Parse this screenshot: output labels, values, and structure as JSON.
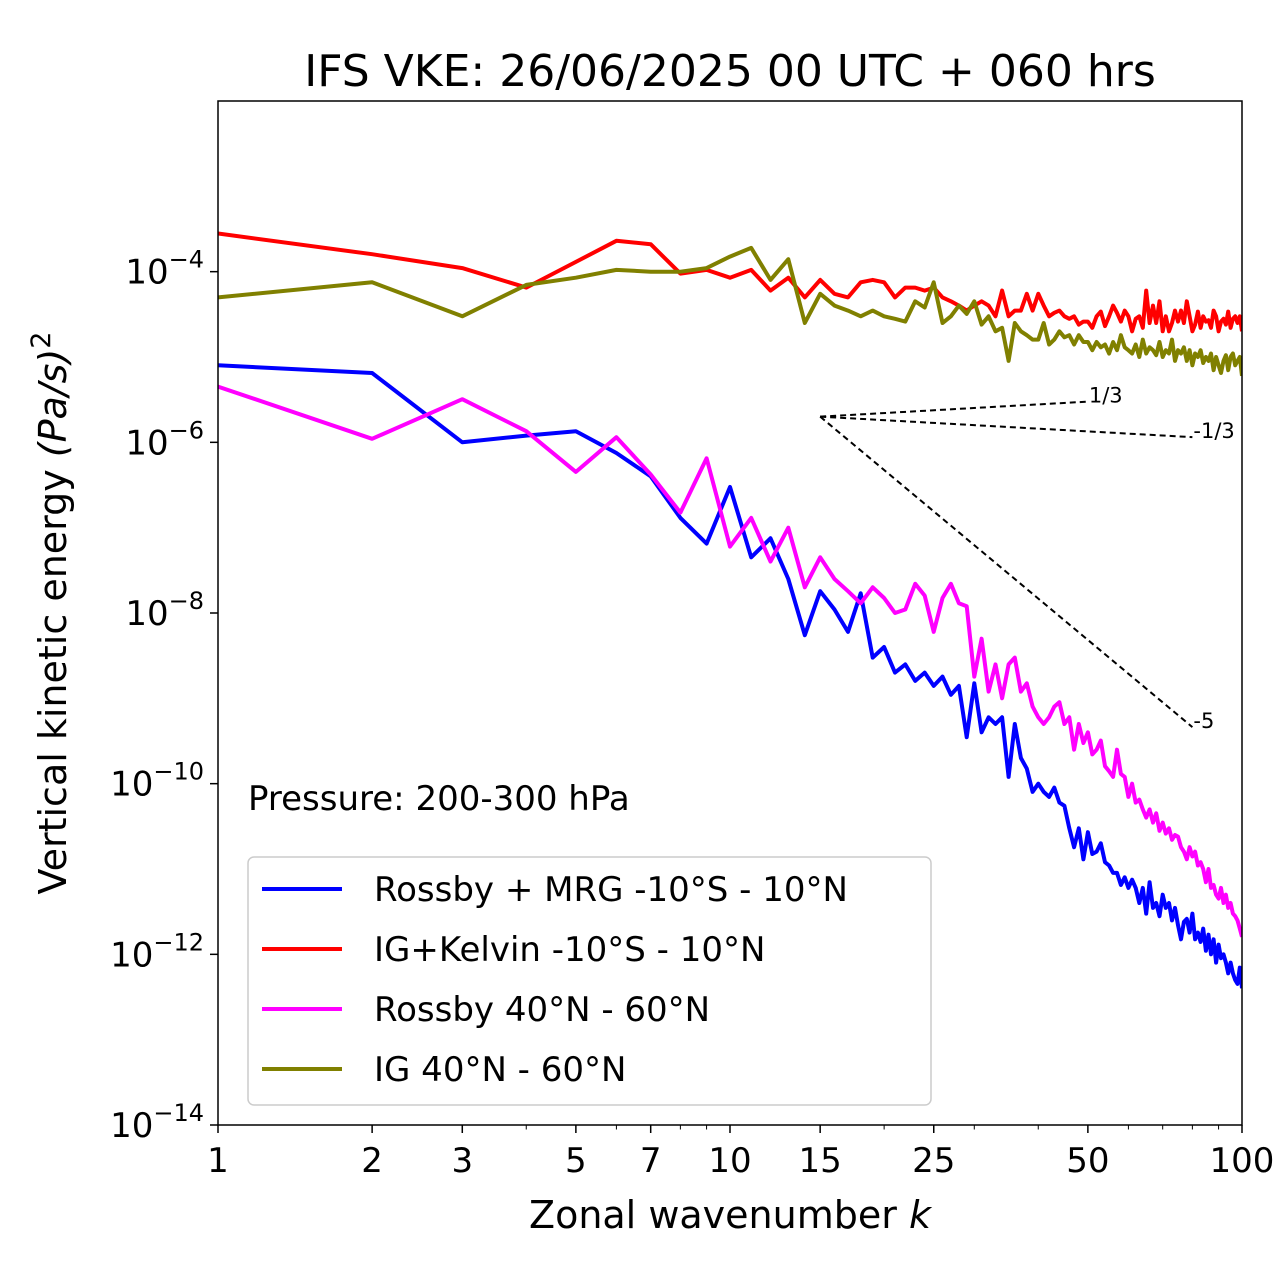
{
  "chart_data": {
    "type": "line",
    "title": "IFS VKE: 26/06/2025 00 UTC + 060 hrs",
    "xlabel": "Zonal wavenumber",
    "xlabel_var": "k",
    "ylabel": "Vertical kinetic energy",
    "ylabel_unit": "(Pa/s)",
    "ylabel_unit_exp": "2",
    "xscale": "log",
    "yscale": "log",
    "xlim": [
      1,
      100
    ],
    "ylim": [
      1e-14,
      0.01
    ],
    "xticks": [
      1,
      2,
      3,
      5,
      7,
      10,
      15,
      25,
      50,
      100
    ],
    "xtick_labels": [
      "1",
      "2",
      "3",
      "5",
      "7",
      "10",
      "15",
      "25",
      "50",
      "100"
    ],
    "yticks": [
      {
        "value": 0.0001,
        "base": "10",
        "exp": "−4"
      },
      {
        "value": 1e-06,
        "base": "10",
        "exp": "−6"
      },
      {
        "value": 1e-08,
        "base": "10",
        "exp": "−8"
      },
      {
        "value": 1e-10,
        "base": "10",
        "exp": "−10"
      },
      {
        "value": 1e-12,
        "base": "10",
        "exp": "−12"
      },
      {
        "value": 1e-14,
        "base": "10",
        "exp": "−14"
      }
    ],
    "annotation": "Pressure: 200-300 hPa",
    "legend_position": "lower-left",
    "reference_slopes": {
      "origin": {
        "x": 15,
        "y": 2e-06
      },
      "lines": [
        {
          "label": "1/3",
          "end": {
            "x": 50,
            "y": 3e-06
          }
        },
        {
          "label": "-1/3",
          "end": {
            "x": 80,
            "y": 1.15e-06
          }
        },
        {
          "label": "-5",
          "end": {
            "x": 80,
            "y": 4.6e-10
          }
        }
      ]
    },
    "series": [
      {
        "name": "Rossby + MRG -10°S - 10°N",
        "color": "#0000ff",
        "x": [
          1,
          2,
          3,
          4,
          5,
          6,
          7,
          8,
          9,
          10,
          11,
          12,
          13,
          14,
          15,
          16,
          17,
          18,
          19,
          20,
          21,
          22,
          23,
          24,
          25,
          26,
          27,
          28,
          29,
          30,
          31,
          32,
          33,
          34,
          35,
          36,
          37,
          38,
          39,
          40,
          41,
          42,
          43,
          44,
          45,
          46,
          47,
          48,
          49,
          50,
          51,
          52,
          53,
          54,
          55,
          56,
          57,
          58,
          59,
          60,
          61,
          62,
          63,
          64,
          65,
          66,
          67,
          68,
          69,
          70,
          71,
          72,
          73,
          74,
          75,
          76,
          77,
          78,
          79,
          80,
          81,
          82,
          83,
          84,
          85,
          86,
          87,
          88,
          89,
          90,
          91,
          92,
          93,
          94,
          95,
          96,
          97,
          98,
          99,
          100
        ],
        "y": [
          8e-06,
          6.5e-06,
          1e-06,
          1.2e-06,
          1.35e-06,
          7.5e-07,
          4e-07,
          1.3e-07,
          6.5e-08,
          3e-07,
          4.5e-08,
          7.5e-08,
          2.5e-08,
          5.5e-09,
          1.8e-08,
          1.1e-08,
          6e-09,
          1.7e-08,
          3e-09,
          4e-09,
          2e-09,
          2.5e-09,
          1.6e-09,
          2e-09,
          1.4e-09,
          1.8e-09,
          1.1e-09,
          1.4e-09,
          3.5e-10,
          1.5e-09,
          4e-10,
          6e-10,
          5e-10,
          6e-10,
          1.2e-10,
          5e-10,
          2e-10,
          1.5e-10,
          8e-11,
          1e-10,
          8e-11,
          7e-11,
          9e-11,
          6e-11,
          5.5e-11,
          3e-11,
          1.8e-11,
          3e-11,
          1.3e-11,
          2.7e-11,
          1.5e-11,
          1.6e-11,
          2e-11,
          1.2e-11,
          1.1e-11,
          9e-12,
          9e-12,
          6.5e-12,
          8e-12,
          6e-12,
          7.5e-12,
          6e-12,
          4e-12,
          6e-12,
          3e-12,
          7e-12,
          3.5e-12,
          4e-12,
          2.8e-12,
          5e-12,
          3.5e-12,
          4e-12,
          2.5e-12,
          3.5e-12,
          2.2e-12,
          1.5e-12,
          2.4e-12,
          2.6e-12,
          1.8e-12,
          3e-12,
          1.5e-12,
          1.8e-12,
          1.4e-12,
          2e-12,
          1.1e-12,
          1.7e-12,
          1e-12,
          1.5e-12,
          8e-13,
          1.3e-12,
          9e-13,
          1e-12,
          8e-13,
          6e-13,
          8e-13,
          6e-13,
          5e-13,
          4.5e-13,
          7e-13,
          4e-13
        ]
      },
      {
        "name": "IG+Kelvin -10°S - 10°N",
        "color": "#ff0000",
        "x": [
          1,
          2,
          3,
          4,
          5,
          6,
          7,
          8,
          9,
          10,
          11,
          12,
          13,
          14,
          15,
          16,
          17,
          18,
          19,
          20,
          21,
          22,
          23,
          24,
          25,
          26,
          27,
          28,
          29,
          30,
          31,
          32,
          33,
          34,
          35,
          36,
          37,
          38,
          39,
          40,
          41,
          42,
          43,
          44,
          45,
          46,
          47,
          48,
          49,
          50,
          51,
          52,
          53,
          54,
          55,
          56,
          57,
          58,
          59,
          60,
          61,
          62,
          63,
          64,
          65,
          66,
          67,
          68,
          69,
          70,
          71,
          72,
          73,
          74,
          75,
          76,
          77,
          78,
          79,
          80,
          81,
          82,
          83,
          84,
          85,
          86,
          87,
          88,
          89,
          90,
          91,
          92,
          93,
          94,
          95,
          96,
          97,
          98,
          99,
          100
        ],
        "y": [
          0.00028,
          0.00016,
          0.00011,
          6.5e-05,
          0.00013,
          0.00023,
          0.00021,
          9.5e-05,
          0.000105,
          8.5e-05,
          0.000105,
          6e-05,
          8.5e-05,
          5e-05,
          8e-05,
          5.5e-05,
          5e-05,
          7.5e-05,
          8e-05,
          7.5e-05,
          5e-05,
          6.5e-05,
          6.5e-05,
          6e-05,
          6.5e-05,
          5e-05,
          4.5e-05,
          4e-05,
          3.5e-05,
          4e-05,
          4.5e-05,
          4e-05,
          3e-05,
          6e-05,
          3e-05,
          3.5e-05,
          3.5e-05,
          5.5e-05,
          3.5e-05,
          5.5e-05,
          4e-05,
          3e-05,
          3.3e-05,
          3.5e-05,
          3e-05,
          2.8e-05,
          3e-05,
          2.4e-05,
          2.6e-05,
          2.6e-05,
          2.2e-05,
          3e-05,
          3.4e-05,
          2.3e-05,
          3e-05,
          4e-05,
          3.3e-05,
          2.6e-05,
          3.5e-05,
          3e-05,
          2e-05,
          2.8e-05,
          3e-05,
          2.2e-05,
          6e-05,
          2.5e-05,
          4e-05,
          2.5e-05,
          4.5e-05,
          2e-05,
          3e-05,
          2e-05,
          2.5e-05,
          3.5e-05,
          2.6e-05,
          3.5e-05,
          2.5e-05,
          4.5e-05,
          3e-05,
          2e-05,
          2.4e-05,
          3.4e-05,
          2.2e-05,
          3e-05,
          2.6e-05,
          2.7e-05,
          2.2e-05,
          3.5e-05,
          3e-05,
          2e-05,
          2.6e-05,
          2.8e-05,
          2.4e-05,
          3.4e-05,
          2.2e-05,
          2.8e-05,
          3e-05,
          2.5e-05,
          3e-05,
          2e-05
        ]
      },
      {
        "name": "Rossby 40°N - 60°N",
        "color": "#ff00ff",
        "x": [
          1,
          2,
          3,
          4,
          5,
          6,
          7,
          8,
          9,
          10,
          11,
          12,
          13,
          14,
          15,
          16,
          17,
          18,
          19,
          20,
          21,
          22,
          23,
          24,
          25,
          26,
          27,
          28,
          29,
          30,
          31,
          32,
          33,
          34,
          35,
          36,
          37,
          38,
          39,
          40,
          41,
          42,
          43,
          44,
          45,
          46,
          47,
          48,
          49,
          50,
          51,
          52,
          53,
          54,
          55,
          56,
          57,
          58,
          59,
          60,
          61,
          62,
          63,
          64,
          65,
          66,
          67,
          68,
          69,
          70,
          71,
          72,
          73,
          74,
          75,
          76,
          77,
          78,
          79,
          80,
          81,
          82,
          83,
          84,
          85,
          86,
          87,
          88,
          89,
          90,
          91,
          92,
          93,
          94,
          95,
          96,
          97,
          98,
          99,
          100
        ],
        "y": [
          4.5e-06,
          1.1e-06,
          3.2e-06,
          1.35e-06,
          4.5e-07,
          1.15e-06,
          4.2e-07,
          1.5e-07,
          6.5e-07,
          6e-08,
          1.3e-07,
          4e-08,
          1e-07,
          2e-08,
          4.5e-08,
          2.5e-08,
          1.8e-08,
          1.3e-08,
          2e-08,
          1.5e-08,
          1e-08,
          1.1e-08,
          2.2e-08,
          1.6e-08,
          6e-09,
          1.5e-08,
          2.2e-08,
          1.3e-08,
          1.2e-08,
          1.8e-09,
          5e-09,
          1.2e-09,
          2.5e-09,
          1e-09,
          2.5e-09,
          3e-09,
          1.2e-09,
          1.5e-09,
          8e-10,
          6e-10,
          5e-10,
          6e-10,
          8e-10,
          9e-10,
          5e-10,
          6e-10,
          2.5e-10,
          5e-10,
          3e-10,
          4e-10,
          2.2e-10,
          2.5e-10,
          3.2e-10,
          1.6e-10,
          1.4e-10,
          1.2e-10,
          2.5e-10,
          1.3e-10,
          1.2e-10,
          7e-11,
          1e-10,
          6e-11,
          6.5e-11,
          5e-11,
          4e-11,
          5e-11,
          3.5e-11,
          4.5e-11,
          2.8e-11,
          3.5e-11,
          2.6e-11,
          3e-11,
          2.2e-11,
          2.5e-11,
          2.4e-11,
          1.8e-11,
          1.6e-11,
          1.3e-11,
          1.8e-11,
          1.4e-11,
          1.6e-11,
          1.1e-11,
          1.2e-11,
          1e-11,
          7e-12,
          1e-11,
          6e-12,
          6.5e-12,
          5e-12,
          4.5e-12,
          6e-12,
          4e-12,
          5e-12,
          3.5e-12,
          4e-12,
          3e-12,
          2.8e-12,
          2.5e-12,
          2e-12,
          1.6e-12
        ]
      },
      {
        "name": "IG 40°N - 60°N",
        "color": "#808000",
        "x": [
          1,
          2,
          3,
          4,
          5,
          6,
          7,
          8,
          9,
          10,
          11,
          12,
          13,
          14,
          15,
          16,
          17,
          18,
          19,
          20,
          21,
          22,
          23,
          24,
          25,
          26,
          27,
          28,
          29,
          30,
          31,
          32,
          33,
          34,
          35,
          36,
          37,
          38,
          39,
          40,
          41,
          42,
          43,
          44,
          45,
          46,
          47,
          48,
          49,
          50,
          51,
          52,
          53,
          54,
          55,
          56,
          57,
          58,
          59,
          60,
          61,
          62,
          63,
          64,
          65,
          66,
          67,
          68,
          69,
          70,
          71,
          72,
          73,
          74,
          75,
          76,
          77,
          78,
          79,
          80,
          81,
          82,
          83,
          84,
          85,
          86,
          87,
          88,
          89,
          90,
          91,
          92,
          93,
          94,
          95,
          96,
          97,
          98,
          99,
          100
        ],
        "y": [
          5e-05,
          7.5e-05,
          3e-05,
          7e-05,
          8.5e-05,
          0.000105,
          0.0001,
          0.0001,
          0.00011,
          0.00015,
          0.00019,
          8e-05,
          0.00014,
          2.5e-05,
          5.5e-05,
          4e-05,
          3.5e-05,
          3e-05,
          3.5e-05,
          3e-05,
          2.8e-05,
          2.6e-05,
          4.5e-05,
          3.8e-05,
          7.5e-05,
          2.5e-05,
          3e-05,
          4e-05,
          3.2e-05,
          4.5e-05,
          2.4e-05,
          3e-05,
          2e-05,
          2.2e-05,
          9e-06,
          2.5e-05,
          2e-05,
          1.8e-05,
          1.6e-05,
          1.6e-05,
          2.5e-05,
          1.4e-05,
          1.6e-05,
          2e-05,
          1.7e-05,
          1.8e-05,
          1.4e-05,
          1.8e-05,
          1.5e-05,
          1.5e-05,
          1.2e-05,
          1.5e-05,
          1.3e-05,
          1.4e-05,
          1.1e-05,
          1.5e-05,
          1.2e-05,
          1.8e-05,
          1.3e-05,
          1.2e-05,
          1.1e-05,
          1.4e-05,
          1e-05,
          1.6e-05,
          1.1e-05,
          1.3e-05,
          1.2e-05,
          1.05e-05,
          1.5e-05,
          1e-05,
          1.2e-05,
          1.1e-05,
          1.6e-05,
          9e-06,
          1.2e-05,
          1.1e-05,
          1.3e-05,
          9e-06,
          1.2e-05,
          8e-06,
          1.1e-05,
          1e-05,
          1.2e-05,
          8.5e-06,
          1e-05,
          9e-06,
          1.1e-05,
          7e-06,
          1e-05,
          8e-06,
          6.5e-06,
          9e-06,
          1.05e-05,
          7e-06,
          1e-05,
          1.1e-05,
          8e-06,
          9e-06,
          1e-05,
          6e-06
        ]
      }
    ]
  }
}
